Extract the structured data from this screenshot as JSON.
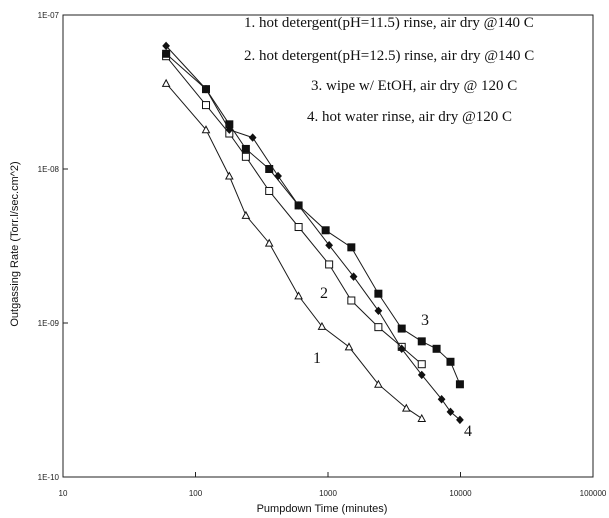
{
  "chart_data": {
    "type": "line",
    "title": "",
    "xlabel": "Pumpdown Time (minutes)",
    "ylabel": "Outgassing Rate (Torr.l/sec.cm^2)",
    "xscale": "log",
    "yscale": "log",
    "xlim": [
      10,
      100000
    ],
    "ylim": [
      1e-10,
      1e-07
    ],
    "x_tick_labels": [
      "10",
      "100",
      "1000",
      "10000",
      "100000"
    ],
    "y_tick_labels": [
      "1E-07",
      "1E-08",
      "1E-09",
      "1E-10"
    ],
    "grid": false,
    "legend_position": "top-right",
    "legend_entries": [
      "1. hot detergent(pH=11.5) rinse, air dry @140 C",
      "2. hot detergent(pH=12.5) rinse, air dry @140 C",
      "3. wipe w/ EtOH, air dry @ 120 C",
      "4. hot water rinse, air dry @120 C"
    ],
    "series": [
      {
        "name": "1",
        "marker": "open-triangle",
        "x": [
          60,
          120,
          180,
          240,
          360,
          600,
          900,
          1440,
          2400,
          3900,
          5100
        ],
        "y": [
          3.6e-08,
          1.8e-08,
          9e-09,
          5e-09,
          3.3e-09,
          1.5e-09,
          9.5e-10,
          7e-10,
          4e-10,
          2.8e-10,
          2.4e-10
        ]
      },
      {
        "name": "2",
        "marker": "open-square",
        "x": [
          60,
          120,
          180,
          240,
          360,
          600,
          1020,
          1500,
          2400,
          3600,
          5100
        ],
        "y": [
          5.4e-08,
          2.6e-08,
          1.7e-08,
          1.2e-08,
          7.2e-09,
          4.2e-09,
          2.4e-09,
          1.4e-09,
          9.4e-10,
          7e-10,
          5.4e-10
        ]
      },
      {
        "name": "3",
        "marker": "filled-square",
        "x": [
          60,
          120,
          180,
          240,
          360,
          600,
          960,
          1500,
          2400,
          3600,
          5100,
          6600,
          8400,
          9900
        ],
        "y": [
          5.6e-08,
          3.3e-08,
          1.95e-08,
          1.35e-08,
          1e-08,
          5.8e-09,
          4e-09,
          3.1e-09,
          1.55e-09,
          9.2e-10,
          7.6e-10,
          6.8e-10,
          5.6e-10,
          4e-10
        ]
      },
      {
        "name": "4",
        "marker": "filled-diamond",
        "x": [
          60,
          120,
          180,
          270,
          420,
          600,
          1020,
          1560,
          2400,
          3600,
          5100,
          7200,
          8400,
          9900
        ],
        "y": [
          6.3e-08,
          3.3e-08,
          1.8e-08,
          1.6e-08,
          9e-09,
          5.8e-09,
          3.2e-09,
          2e-09,
          1.2e-09,
          6.8e-10,
          4.6e-10,
          3.2e-10,
          2.65e-10,
          2.35e-10
        ]
      }
    ]
  }
}
